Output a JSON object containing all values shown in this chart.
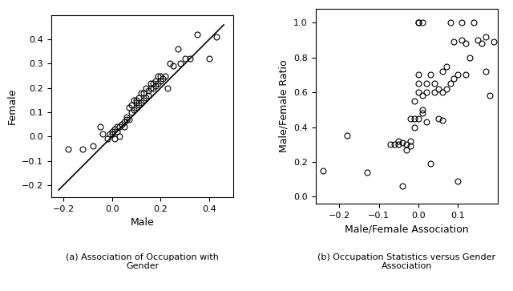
{
  "plot1": {
    "xlabel": "Male",
    "ylabel": "Female",
    "caption": "(a) Association of Occupation with\nGender",
    "xlim": [
      -0.25,
      0.5
    ],
    "ylim": [
      -0.25,
      0.5
    ],
    "xticks": [
      -0.2,
      0.0,
      0.2,
      0.4
    ],
    "yticks": [
      -0.2,
      -0.1,
      0.0,
      0.1,
      0.2,
      0.3,
      0.4
    ],
    "x": [
      -0.18,
      -0.12,
      -0.08,
      -0.05,
      -0.04,
      -0.02,
      -0.01,
      0.0,
      0.0,
      0.01,
      0.01,
      0.02,
      0.02,
      0.03,
      0.03,
      0.04,
      0.05,
      0.05,
      0.06,
      0.06,
      0.07,
      0.07,
      0.08,
      0.08,
      0.09,
      0.09,
      0.1,
      0.1,
      0.1,
      0.11,
      0.11,
      0.12,
      0.12,
      0.13,
      0.13,
      0.14,
      0.14,
      0.15,
      0.15,
      0.16,
      0.16,
      0.17,
      0.17,
      0.18,
      0.18,
      0.19,
      0.19,
      0.2,
      0.2,
      0.21,
      0.22,
      0.23,
      0.24,
      0.25,
      0.27,
      0.28,
      0.3,
      0.32,
      0.35,
      0.4,
      0.43
    ],
    "y": [
      -0.05,
      -0.05,
      -0.04,
      0.04,
      0.01,
      -0.01,
      0.01,
      0.02,
      0.01,
      0.03,
      -0.01,
      0.02,
      0.04,
      0.0,
      0.04,
      0.05,
      0.06,
      0.04,
      0.08,
      0.07,
      0.07,
      0.12,
      0.1,
      0.13,
      0.11,
      0.15,
      0.12,
      0.15,
      0.14,
      0.13,
      0.16,
      0.14,
      0.18,
      0.15,
      0.18,
      0.16,
      0.2,
      0.17,
      0.19,
      0.2,
      0.22,
      0.2,
      0.22,
      0.23,
      0.21,
      0.25,
      0.22,
      0.23,
      0.25,
      0.24,
      0.25,
      0.2,
      0.3,
      0.29,
      0.36,
      0.3,
      0.32,
      0.32,
      0.42,
      0.32,
      0.41
    ],
    "line_x": [
      -0.22,
      0.46
    ],
    "line_y": [
      -0.22,
      0.46
    ],
    "marker_size": 5,
    "marker_color": "none",
    "marker_edge": "black",
    "line_color": "black",
    "line_width": 1.2
  },
  "plot2": {
    "xlabel": "Male/Female Association",
    "ylabel": "Male/Female Ratio",
    "caption": "(b) Occupation Statistics versus Gender\nAssociation",
    "xlim": [
      -0.26,
      0.2
    ],
    "ylim": [
      -0.04,
      1.08
    ],
    "xticks": [
      -0.2,
      -0.1,
      0.0,
      0.1
    ],
    "yticks": [
      0,
      0.2,
      0.4,
      0.6,
      0.8,
      1.0
    ],
    "x": [
      -0.24,
      -0.18,
      -0.13,
      -0.07,
      -0.06,
      -0.05,
      -0.05,
      -0.04,
      -0.04,
      -0.03,
      -0.03,
      -0.02,
      -0.02,
      -0.02,
      -0.01,
      -0.01,
      -0.01,
      0.0,
      0.0,
      0.0,
      0.0,
      0.0,
      0.0,
      0.01,
      0.01,
      0.01,
      0.01,
      0.02,
      0.02,
      0.02,
      0.03,
      0.03,
      0.04,
      0.04,
      0.05,
      0.05,
      0.06,
      0.06,
      0.06,
      0.07,
      0.07,
      0.08,
      0.08,
      0.09,
      0.09,
      0.1,
      0.1,
      0.11,
      0.11,
      0.12,
      0.12,
      0.13,
      0.14,
      0.15,
      0.16,
      0.17,
      0.17,
      0.18,
      0.19
    ],
    "y": [
      0.15,
      0.35,
      0.14,
      0.3,
      0.3,
      0.3,
      0.32,
      0.31,
      0.06,
      0.3,
      0.27,
      0.29,
      0.32,
      0.45,
      0.45,
      0.4,
      0.55,
      0.45,
      0.6,
      0.65,
      0.7,
      1.0,
      1.0,
      0.48,
      0.5,
      0.58,
      1.0,
      0.6,
      0.65,
      0.43,
      0.19,
      0.7,
      0.6,
      0.65,
      0.45,
      0.62,
      0.44,
      0.6,
      0.72,
      0.62,
      0.75,
      0.65,
      1.0,
      0.89,
      0.68,
      0.7,
      0.09,
      0.9,
      1.0,
      0.88,
      0.7,
      0.8,
      1.0,
      0.9,
      0.88,
      0.72,
      0.92,
      0.58,
      0.89
    ],
    "marker_size": 5,
    "marker_color": "none",
    "marker_edge": "black",
    "line_color": "black",
    "line_width": 1.2
  },
  "caption_fontsize": 8,
  "figure_width": 6.4,
  "figure_height": 3.63,
  "dpi": 100
}
